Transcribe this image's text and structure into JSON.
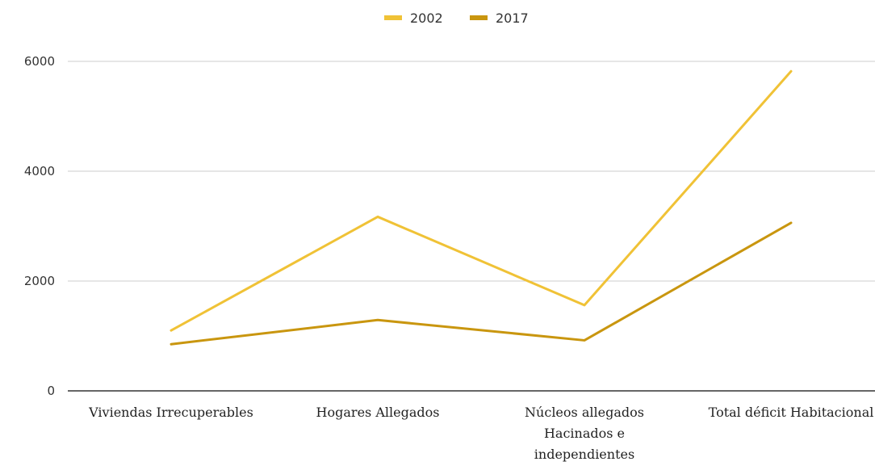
{
  "chart_data": {
    "type": "line",
    "categories": [
      [
        "Viviendas Irrecuperables"
      ],
      [
        "Hogares Allegados"
      ],
      [
        "Núcleos allegados",
        "Hacinados e",
        "independientes"
      ],
      [
        "Total déficit Habitacional"
      ]
    ],
    "series": [
      {
        "name": "2002",
        "color": "#f0c236",
        "values": [
          1100,
          3170,
          1560,
          5820
        ]
      },
      {
        "name": "2017",
        "color": "#c9960f",
        "values": [
          850,
          1290,
          920,
          3060
        ]
      }
    ],
    "y_ticks": [
      0,
      2000,
      4000,
      6000
    ],
    "ylim": [
      0,
      6000
    ],
    "grid": true,
    "legend_position": "top-center",
    "gridline_color": "#cccccc",
    "baseline_color": "#333333"
  }
}
